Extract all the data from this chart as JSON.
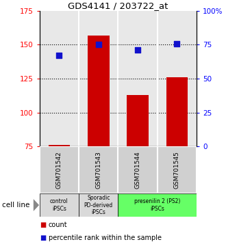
{
  "title": "GDS4141 / 203722_at",
  "samples": [
    "GSM701542",
    "GSM701543",
    "GSM701544",
    "GSM701545"
  ],
  "counts": [
    76,
    157,
    113,
    126
  ],
  "percentiles": [
    67,
    75,
    71,
    76
  ],
  "ylim_left": [
    75,
    175
  ],
  "ylim_right": [
    0,
    100
  ],
  "yticks_left": [
    75,
    100,
    125,
    150,
    175
  ],
  "yticks_right": [
    0,
    25,
    50,
    75,
    100
  ],
  "ytick_labels_right": [
    "0",
    "25",
    "50",
    "75",
    "100%"
  ],
  "bar_color": "#cc0000",
  "dot_color": "#1111cc",
  "bar_bottom": 75,
  "group_configs": [
    {
      "start": 0,
      "end": 0,
      "label": "control\niPSCs",
      "color": "#d9d9d9"
    },
    {
      "start": 1,
      "end": 1,
      "label": "Sporadic\nPD-derived\niPSCs",
      "color": "#d9d9d9"
    },
    {
      "start": 2,
      "end": 3,
      "label": "presenilin 2 (PS2)\niPSCs",
      "color": "#66ff66"
    }
  ],
  "cell_line_label": "cell line",
  "legend_count_label": "count",
  "legend_percentile_label": "percentile rank within the sample",
  "background_color": "#ffffff",
  "plot_bg_color": "#e8e8e8",
  "hgrid_values": [
    100,
    125,
    150
  ]
}
